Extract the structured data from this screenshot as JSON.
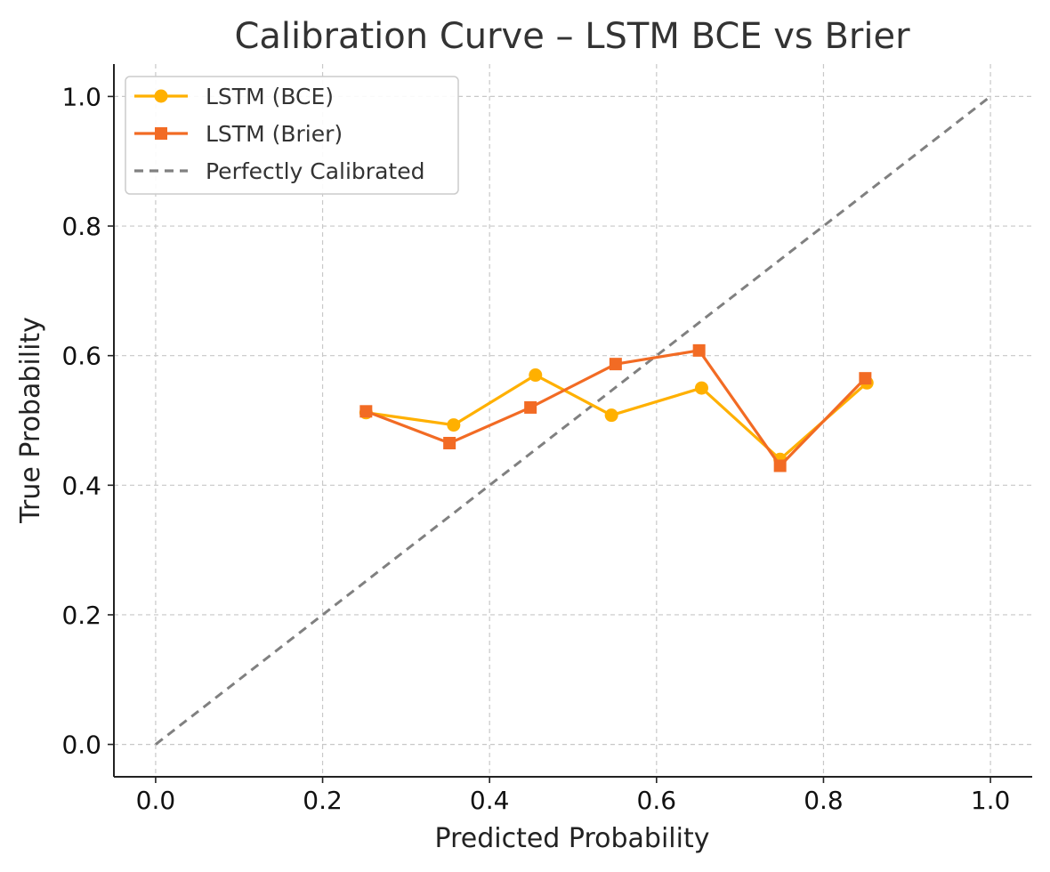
{
  "chart_data": {
    "type": "line",
    "title": "Calibration Curve – LSTM BCE vs Brier",
    "xlabel": "Predicted Probability",
    "ylabel": "True Probability",
    "xlim": [
      -0.05,
      1.05
    ],
    "ylim": [
      -0.05,
      1.05
    ],
    "x_ticks": [
      0.0,
      0.2,
      0.4,
      0.6,
      0.8,
      1.0
    ],
    "y_ticks": [
      0.0,
      0.2,
      0.4,
      0.6,
      0.8,
      1.0
    ],
    "x_tick_labels": [
      "0.0",
      "0.2",
      "0.4",
      "0.6",
      "0.8",
      "1.0"
    ],
    "y_tick_labels": [
      "0.0",
      "0.2",
      "0.4",
      "0.6",
      "0.8",
      "1.0"
    ],
    "grid": true,
    "legend_position": "top-left",
    "series": [
      {
        "name": "LSTM (BCE)",
        "color": "#FFB000",
        "marker": "circle",
        "x": [
          0.252,
          0.357,
          0.455,
          0.546,
          0.654,
          0.748,
          0.852
        ],
        "y": [
          0.512,
          0.493,
          0.57,
          0.508,
          0.55,
          0.44,
          0.558
        ]
      },
      {
        "name": "LSTM (Brier)",
        "color": "#F26B24",
        "marker": "square",
        "x": [
          0.252,
          0.352,
          0.449,
          0.551,
          0.651,
          0.748,
          0.85
        ],
        "y": [
          0.514,
          0.465,
          0.52,
          0.587,
          0.608,
          0.43,
          0.565
        ]
      },
      {
        "name": "Perfectly Calibrated",
        "color": "#808080",
        "style": "dashed",
        "x": [
          0.0,
          1.0
        ],
        "y": [
          0.0,
          1.0
        ]
      }
    ]
  }
}
